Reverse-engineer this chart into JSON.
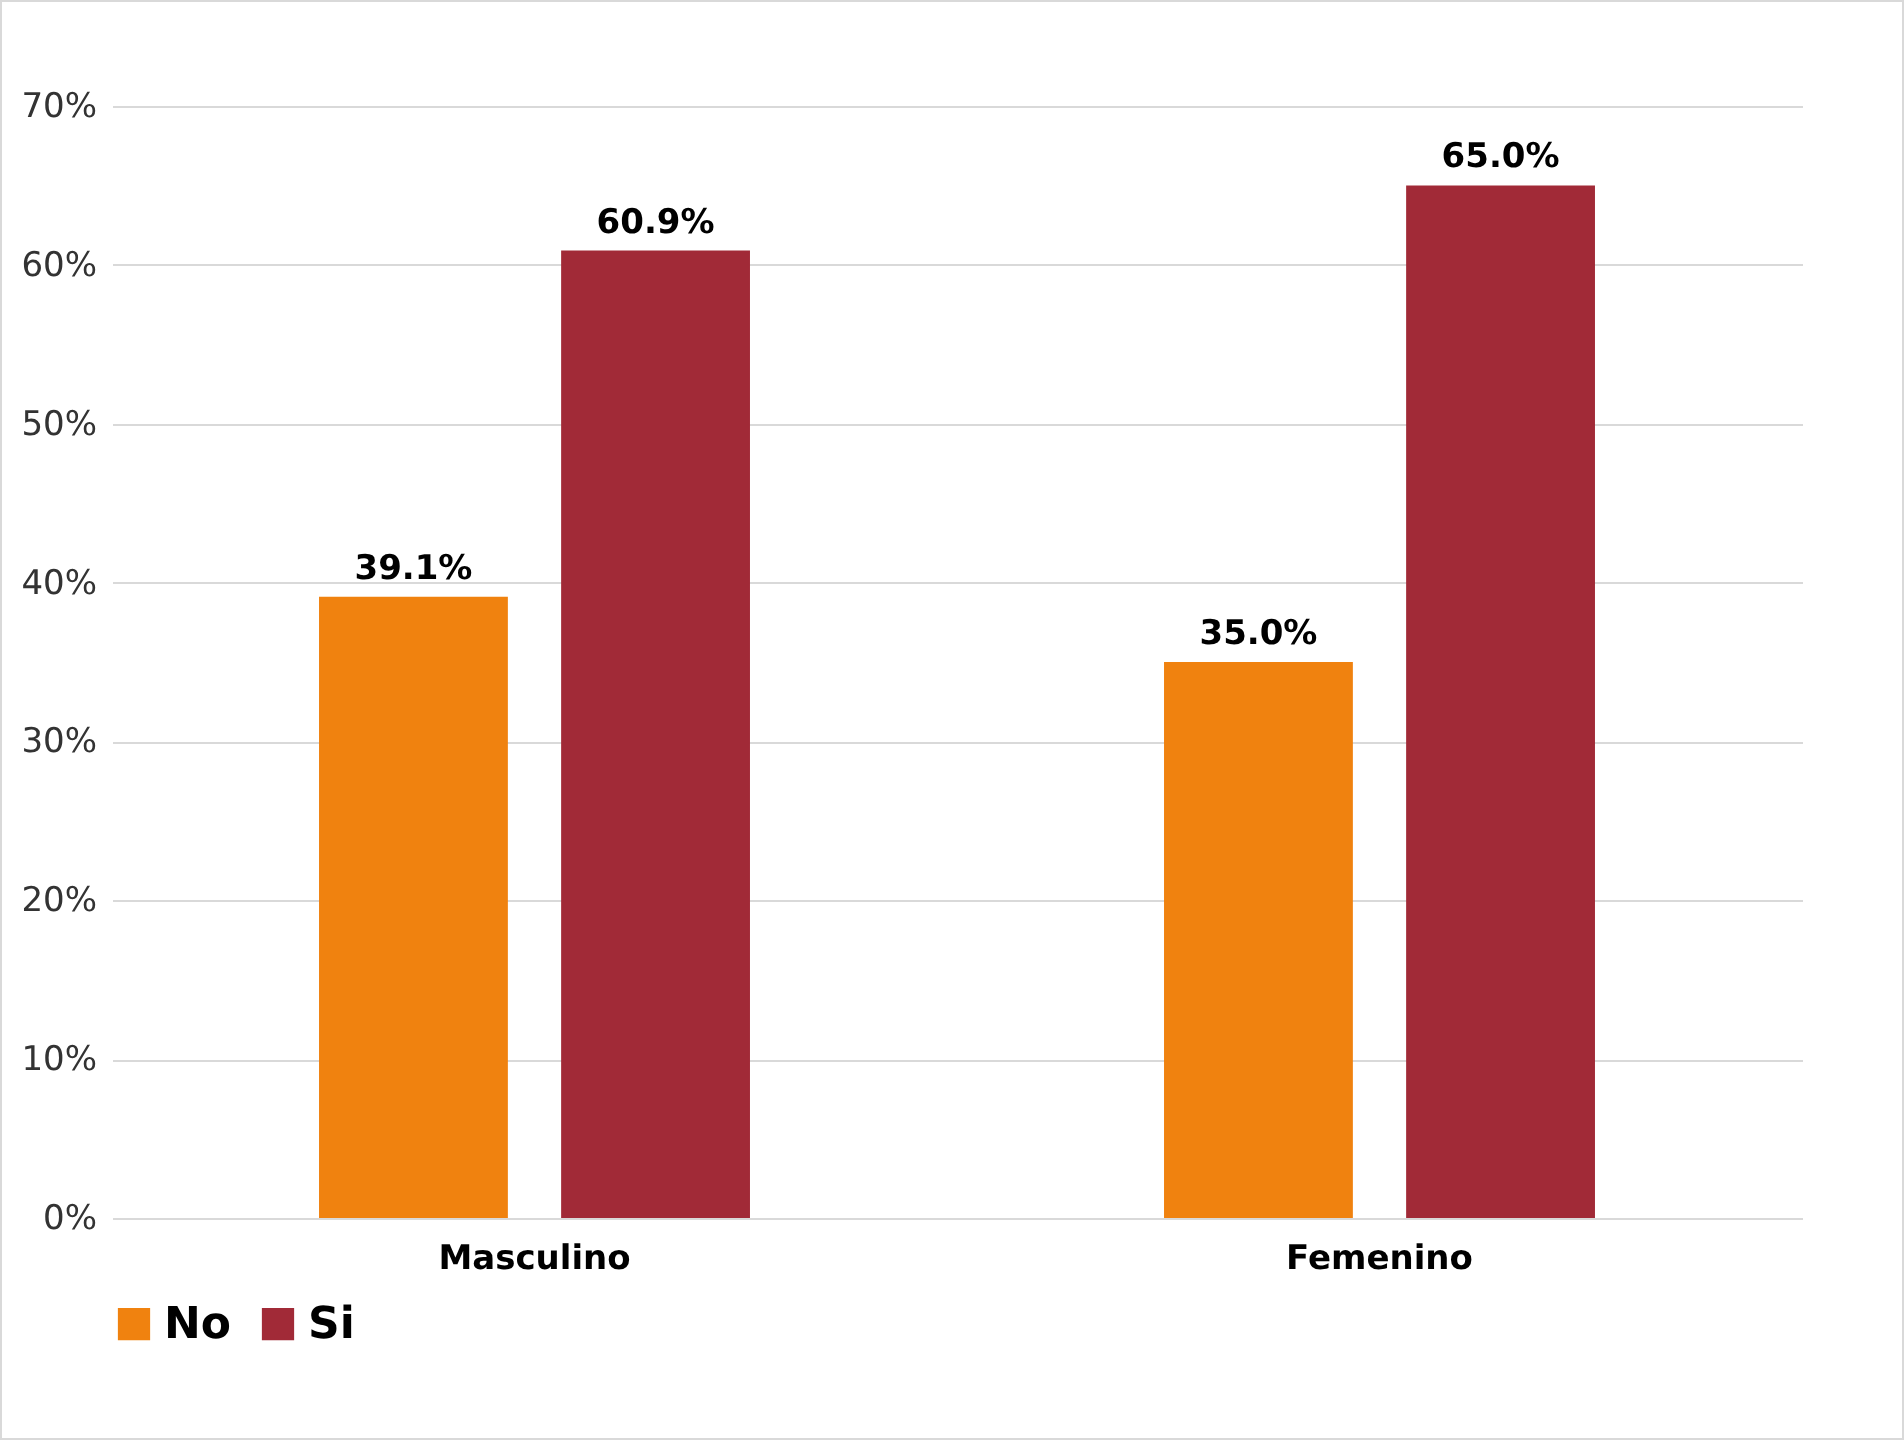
{
  "chart_data": {
    "type": "bar",
    "categories": [
      "Masculino",
      "Femenino"
    ],
    "series": [
      {
        "name": "No",
        "color": "#f0820f",
        "values": [
          39.1,
          35.0
        ],
        "value_labels": [
          "39.1%",
          "35.0%"
        ]
      },
      {
        "name": "Si",
        "color": "#a12a37",
        "values": [
          60.9,
          65.0
        ],
        "value_labels": [
          "60.9%",
          "65.0%"
        ]
      }
    ],
    "ylim": [
      0,
      70
    ],
    "yticks": [
      {
        "value": 0,
        "label": "0%"
      },
      {
        "value": 10,
        "label": "10%"
      },
      {
        "value": 20,
        "label": "20%"
      },
      {
        "value": 30,
        "label": "30%"
      },
      {
        "value": 40,
        "label": "40%"
      },
      {
        "value": 50,
        "label": "50%"
      },
      {
        "value": 60,
        "label": "60%"
      },
      {
        "value": 70,
        "label": "70%"
      }
    ],
    "grid": "y",
    "legend": "bottom"
  }
}
